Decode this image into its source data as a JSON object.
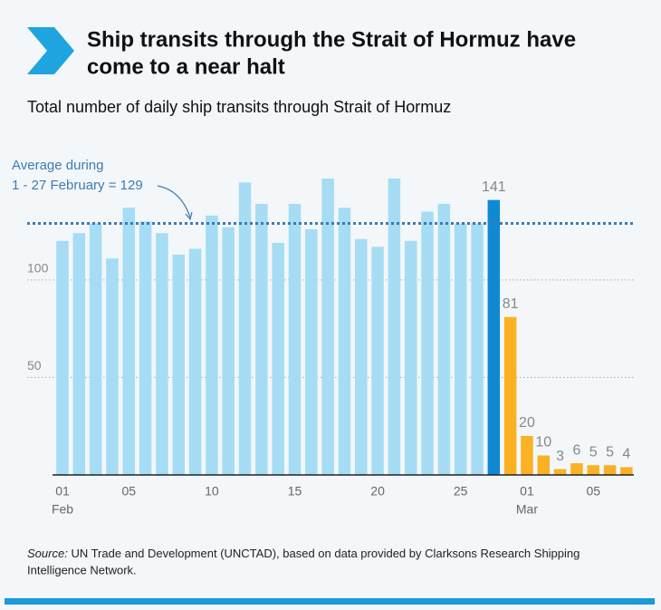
{
  "chart_data": {
    "type": "bar",
    "title": [
      "Ship transits through the Strait of Hormuz have",
      "come to a near halt"
    ],
    "subtitle": "Total number of daily ship transits through Strait of Hormuz",
    "annotation": [
      "Average during",
      "1 - 27 February = 129"
    ],
    "average": 129,
    "source_label": "Source:",
    "source": [
      "UN Trade and Development (UNCTAD), based on data provided by Clarksons Research Shipping",
      "Intelligence Network."
    ],
    "categories": [
      "01",
      null,
      null,
      null,
      "05",
      null,
      null,
      null,
      null,
      "10",
      null,
      null,
      null,
      null,
      "15",
      null,
      null,
      null,
      null,
      "20",
      null,
      null,
      null,
      null,
      "25",
      null,
      null,
      null,
      "01",
      null,
      null,
      null,
      "05",
      null,
      null
    ],
    "x_sublabels": [
      "Feb",
      null,
      null,
      null,
      null,
      null,
      null,
      null,
      null,
      null,
      null,
      null,
      null,
      null,
      null,
      null,
      null,
      null,
      null,
      null,
      null,
      null,
      null,
      null,
      null,
      null,
      null,
      null,
      "Mar",
      null,
      null,
      null,
      null,
      null,
      null
    ],
    "values": [
      120,
      124,
      129,
      111,
      137,
      130,
      124,
      113,
      116,
      133,
      127,
      150,
      139,
      119,
      139,
      126,
      152,
      137,
      121,
      117,
      152,
      120,
      135,
      139,
      129,
      129,
      141,
      81,
      20,
      10,
      3,
      6,
      5,
      5,
      4
    ],
    "value_labels": [
      null,
      null,
      null,
      null,
      null,
      null,
      null,
      null,
      null,
      null,
      null,
      null,
      null,
      null,
      null,
      null,
      null,
      null,
      null,
      null,
      null,
      null,
      null,
      null,
      null,
      null,
      "141",
      "81",
      "20",
      "10",
      "3",
      "6",
      "5",
      "5",
      "4"
    ],
    "colors": [
      "#a6dcf4",
      "#a6dcf4",
      "#a6dcf4",
      "#a6dcf4",
      "#a6dcf4",
      "#a6dcf4",
      "#a6dcf4",
      "#a6dcf4",
      "#a6dcf4",
      "#a6dcf4",
      "#a6dcf4",
      "#a6dcf4",
      "#a6dcf4",
      "#a6dcf4",
      "#a6dcf4",
      "#a6dcf4",
      "#a6dcf4",
      "#a6dcf4",
      "#a6dcf4",
      "#a6dcf4",
      "#a6dcf4",
      "#a6dcf4",
      "#a6dcf4",
      "#a6dcf4",
      "#a6dcf4",
      "#a6dcf4",
      "#0f8ad2",
      "#fbb124",
      "#fbb124",
      "#fbb124",
      "#fbb124",
      "#fbb124",
      "#fbb124",
      "#fbb124",
      "#fbb124"
    ],
    "average_color": "#3d7bb0",
    "ylim": [
      0,
      165
    ],
    "yticks": [
      50,
      100
    ],
    "grid": true
  }
}
